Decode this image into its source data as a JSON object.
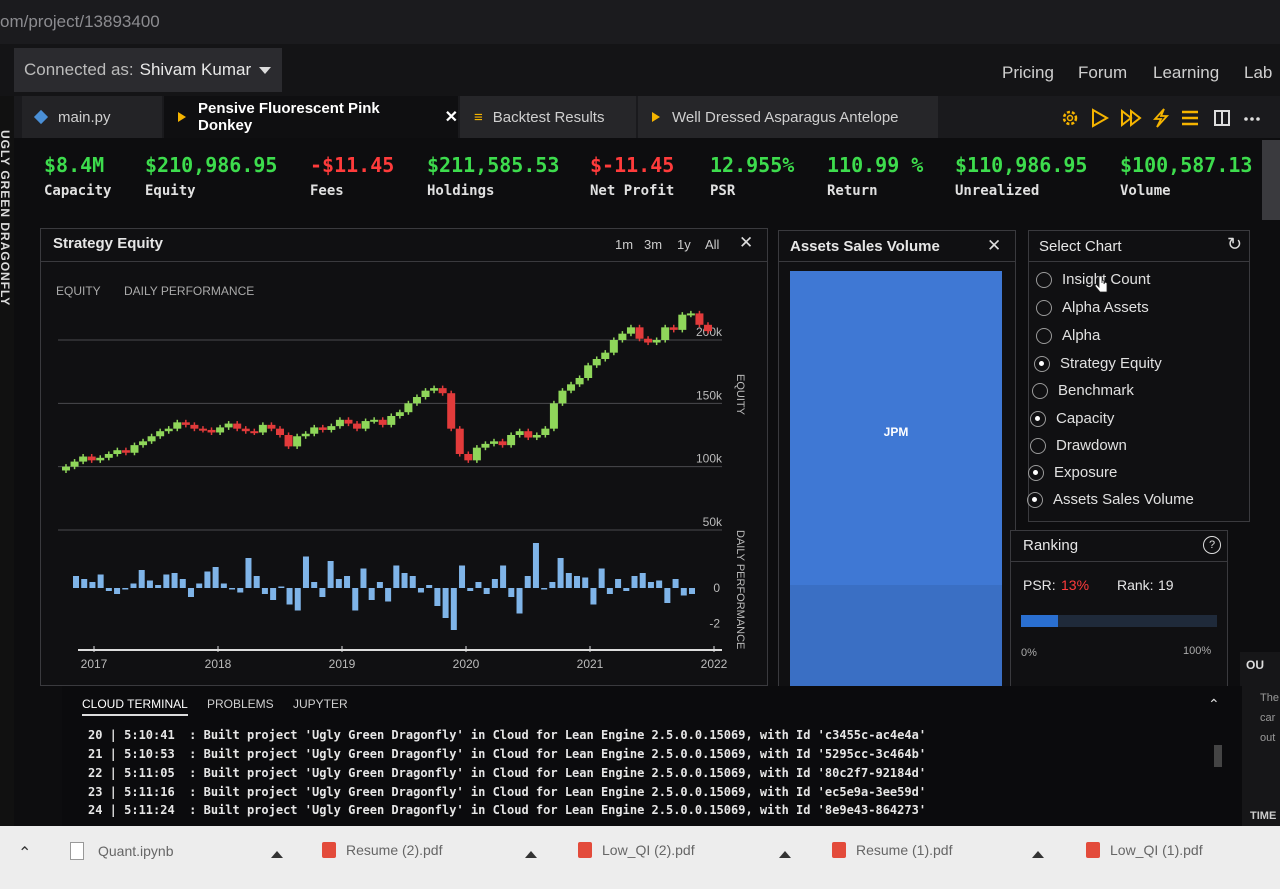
{
  "browser": {
    "url": "om/project/13893400"
  },
  "topnav": {
    "connected_prefix": "Connected as:",
    "user": "Shivam Kumar",
    "links": [
      "Pricing",
      "Forum",
      "Learning",
      "Lab"
    ]
  },
  "sidebar": {
    "vertical_label": "UGLY GREEN DRAGONFLY"
  },
  "tabs": [
    {
      "label": "main.py"
    },
    {
      "label": "Pensive Fluorescent Pink Donkey",
      "close": "✕"
    },
    {
      "label": "Backtest Results"
    },
    {
      "label": "Well Dressed Asparagus Antelope"
    }
  ],
  "toolbar_icons": [
    "gear-icon",
    "play-icon",
    "fast-forward-icon",
    "lightning-icon",
    "list-icon",
    "split-view-icon",
    "more-icon"
  ],
  "stats": [
    {
      "value": "$8.4M",
      "label": "Capacity",
      "color": "#3ddc4d"
    },
    {
      "value": "$210,986.95",
      "label": "Equity",
      "color": "#3ddc4d"
    },
    {
      "value": "-$11.45",
      "label": "Fees",
      "color": "#ff3b3b"
    },
    {
      "value": "$211,585.53",
      "label": "Holdings",
      "color": "#3ddc4d"
    },
    {
      "value": "$-11.45",
      "label": "Net Profit",
      "color": "#ff3b3b"
    },
    {
      "value": "12.955%",
      "label": "PSR",
      "color": "#3ddc4d"
    },
    {
      "value": "110.99 %",
      "label": "Return",
      "color": "#3ddc4d"
    },
    {
      "value": "$110,986.95",
      "label": "Unrealized",
      "color": "#3ddc4d"
    },
    {
      "value": "$100,587.13",
      "label": "Volume",
      "color": "#3ddc4d"
    }
  ],
  "strategy_equity": {
    "title": "Strategy Equity",
    "ranges": [
      "1m",
      "3m",
      "1y",
      "All"
    ],
    "close": "✕",
    "subtabs": [
      "EQUITY",
      "DAILY PERFORMANCE"
    ]
  },
  "assets_sales": {
    "title": "Assets Sales Volume",
    "close": "✕",
    "asset": "JPM"
  },
  "select_chart": {
    "title": "Select Chart",
    "options": [
      {
        "label": "Insight Count",
        "selected": false
      },
      {
        "label": "Alpha Assets",
        "selected": false
      },
      {
        "label": "Alpha",
        "selected": false
      },
      {
        "label": "Strategy Equity",
        "selected": true
      },
      {
        "label": "Benchmark",
        "selected": false
      },
      {
        "label": "Capacity",
        "selected": true
      },
      {
        "label": "Drawdown",
        "selected": false
      },
      {
        "label": "Exposure",
        "selected": true
      },
      {
        "label": "Assets Sales Volume",
        "selected": true
      }
    ]
  },
  "ranking": {
    "title": "Ranking",
    "psr_label": "PSR:",
    "psr_value": "13%",
    "rank_label": "Rank:",
    "rank_value": "19",
    "progress": 0.19,
    "min_label": "0%",
    "max_label": "100%"
  },
  "right_edge": {
    "header": "OU",
    "lines": [
      "The",
      "car",
      "out"
    ],
    "footer": "TIME"
  },
  "terminal": {
    "tabs": [
      "CLOUD TERMINAL",
      "PROBLEMS",
      "JUPYTER"
    ],
    "lines": [
      "20 | 5:10:41  : Built project 'Ugly Green Dragonfly' in Cloud for Lean Engine 2.5.0.0.15069, with Id 'c3455c-ac4e4a'",
      "21 | 5:10:53  : Built project 'Ugly Green Dragonfly' in Cloud for Lean Engine 2.5.0.0.15069, with Id '5295cc-3c464b'",
      "22 | 5:11:05  : Built project 'Ugly Green Dragonfly' in Cloud for Lean Engine 2.5.0.0.15069, with Id '80c2f7-92184d'",
      "23 | 5:11:16  : Built project 'Ugly Green Dragonfly' in Cloud for Lean Engine 2.5.0.0.15069, with Id 'ec5e9a-3ee59d'",
      "24 | 5:11:24  : Built project 'Ugly Green Dragonfly' in Cloud for Lean Engine 2.5.0.0.15069, with Id '8e9e43-864273'"
    ]
  },
  "downloads": [
    "Quant.ipynb",
    "Resume (2).pdf",
    "Low_QI (2).pdf",
    "Resume (1).pdf",
    "Low_QI (1).pdf"
  ],
  "chart_data": {
    "type": "candlestick",
    "x_ticks": [
      "2017",
      "2018",
      "2019",
      "2020",
      "2021",
      "2022"
    ],
    "equity_axis": {
      "label": "EQUITY",
      "ticks": [
        "200k",
        "150k",
        "100k",
        "50k"
      ],
      "ylim": [
        50,
        230
      ]
    },
    "performance_axis": {
      "label": "DAILY PERFORMANCE",
      "ticks": [
        "0",
        "-2"
      ],
      "ylim": [
        -3.2,
        3.8
      ]
    },
    "equity_close": [
      100,
      104,
      108,
      105,
      107,
      110,
      113,
      111,
      117,
      120,
      124,
      128,
      130,
      135,
      133,
      130,
      129,
      127,
      131,
      134,
      130,
      128,
      127,
      133,
      130,
      125,
      116,
      124,
      126,
      131,
      129,
      132,
      137,
      134,
      130,
      136,
      137,
      133,
      140,
      143,
      150,
      155,
      160,
      162,
      158,
      130,
      110,
      105,
      115,
      118,
      120,
      117,
      125,
      128,
      123,
      125,
      130,
      150,
      160,
      165,
      170,
      180,
      185,
      190,
      200,
      205,
      210,
      201,
      198,
      200,
      210,
      208,
      220,
      221,
      212,
      207
    ],
    "performance": [
      0.8,
      0.6,
      0.4,
      0.9,
      -0.2,
      -0.4,
      -0.1,
      0.3,
      1.2,
      0.5,
      0.2,
      0.9,
      1.0,
      0.6,
      -0.6,
      0.3,
      1.1,
      1.4,
      0.3,
      -0.1,
      -0.3,
      2.0,
      0.8,
      -0.4,
      -0.8,
      0.1,
      -1.1,
      -1.5,
      2.1,
      0.4,
      -0.6,
      1.8,
      0.6,
      0.8,
      -1.5,
      1.3,
      -0.8,
      0.4,
      -0.9,
      1.5,
      1.0,
      0.8,
      -0.3,
      0.2,
      -1.2,
      -2.0,
      -2.8,
      1.5,
      -0.2,
      0.4,
      -0.4,
      0.6,
      1.5,
      -0.6,
      -1.7,
      0.8,
      3.0,
      -0.1,
      0.4,
      2.0,
      1.0,
      0.8,
      0.7,
      -1.1,
      1.3,
      -0.4,
      0.6,
      -0.2,
      0.8,
      1.0,
      0.4,
      0.5,
      -1.0,
      0.6,
      -0.5,
      -0.4
    ]
  }
}
